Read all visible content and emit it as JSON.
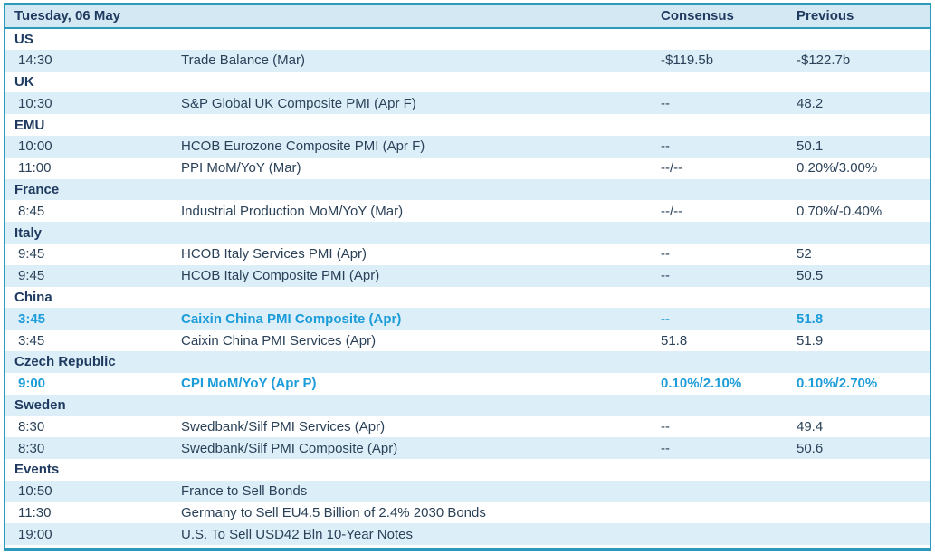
{
  "table": {
    "title": "Tuesday, 06 May",
    "columns": {
      "consensus": "Consensus",
      "previous": "Previous"
    },
    "colors": {
      "border_teal": "#2b9abd",
      "header_bg": "#d4e8f4",
      "alt_row_bg": "#dceff9",
      "heading_text": "#1f3a5f",
      "body_text": "#2a4158",
      "highlight_text": "#1c9cd9"
    },
    "rows": [
      {
        "type": "section",
        "label": "US"
      },
      {
        "type": "data",
        "time": "14:30",
        "event": "Trade Balance (Mar)",
        "consensus": "-$119.5b",
        "previous": "-$122.7b",
        "highlight": false
      },
      {
        "type": "section",
        "label": "UK"
      },
      {
        "type": "data",
        "time": "10:30",
        "event": "S&P Global UK Composite PMI (Apr F)",
        "consensus": "--",
        "previous": "48.2",
        "highlight": false
      },
      {
        "type": "section",
        "label": "EMU"
      },
      {
        "type": "data",
        "time": "10:00",
        "event": "HCOB Eurozone Composite PMI (Apr F)",
        "consensus": "--",
        "previous": "50.1",
        "highlight": false
      },
      {
        "type": "data",
        "time": "11:00",
        "event": "PPI MoM/YoY (Mar)",
        "consensus": "--/--",
        "previous": "0.20%/3.00%",
        "highlight": false
      },
      {
        "type": "section",
        "label": "France"
      },
      {
        "type": "data",
        "time": "8:45",
        "event": "Industrial Production MoM/YoY (Mar)",
        "consensus": "--/--",
        "previous": "0.70%/-0.40%",
        "highlight": false
      },
      {
        "type": "section",
        "label": "Italy"
      },
      {
        "type": "data",
        "time": "9:45",
        "event": "HCOB Italy Services PMI (Apr)",
        "consensus": "--",
        "previous": "52",
        "highlight": false
      },
      {
        "type": "data",
        "time": "9:45",
        "event": "HCOB Italy Composite PMI (Apr)",
        "consensus": "--",
        "previous": "50.5",
        "highlight": false
      },
      {
        "type": "section",
        "label": "China"
      },
      {
        "type": "data",
        "time": "3:45",
        "event": "Caixin China PMI Composite (Apr)",
        "consensus": "--",
        "previous": "51.8",
        "highlight": true
      },
      {
        "type": "data",
        "time": "3:45",
        "event": "Caixin China PMI Services (Apr)",
        "consensus": "51.8",
        "previous": "51.9",
        "highlight": false
      },
      {
        "type": "section",
        "label": "Czech Republic"
      },
      {
        "type": "data",
        "time": "9:00",
        "event": "CPI MoM/YoY (Apr P)",
        "consensus": "0.10%/2.10%",
        "previous": "0.10%/2.70%",
        "highlight": true
      },
      {
        "type": "section",
        "label": "Sweden"
      },
      {
        "type": "data",
        "time": "8:30",
        "event": "Swedbank/Silf PMI Services (Apr)",
        "consensus": "--",
        "previous": "49.4",
        "highlight": false
      },
      {
        "type": "data",
        "time": "8:30",
        "event": "Swedbank/Silf PMI Composite (Apr)",
        "consensus": "--",
        "previous": "50.6",
        "highlight": false
      },
      {
        "type": "section",
        "label": "Events"
      },
      {
        "type": "data",
        "time": "10:50",
        "event": "France to Sell Bonds",
        "consensus": "",
        "previous": "",
        "highlight": false
      },
      {
        "type": "data",
        "time": "11:30",
        "event": "Germany to Sell EU4.5 Billion of 2.4% 2030 Bonds",
        "consensus": "",
        "previous": "",
        "highlight": false
      },
      {
        "type": "data",
        "time": "19:00",
        "event": "U.S. To Sell USD42 Bln 10-Year Notes",
        "consensus": "",
        "previous": "",
        "highlight": false
      }
    ]
  }
}
